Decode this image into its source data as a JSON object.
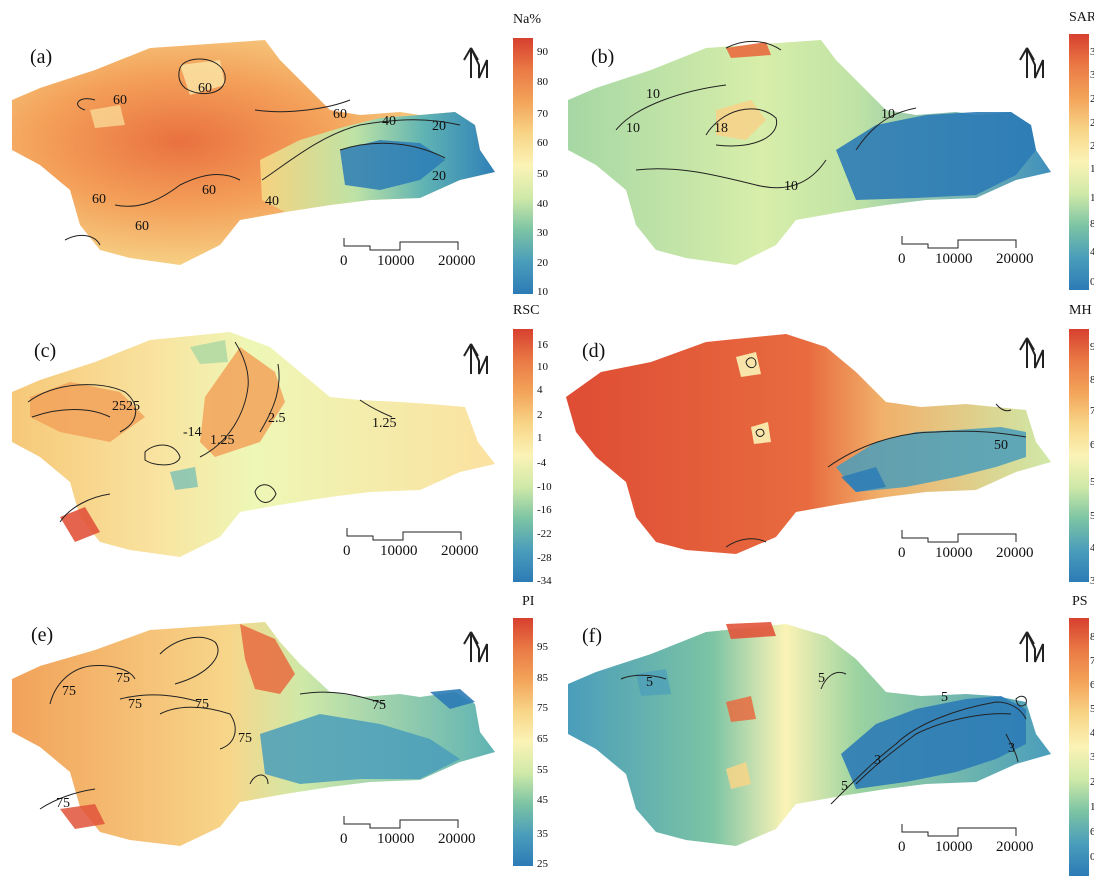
{
  "panels": [
    {
      "id": "a",
      "label": "(a)",
      "legend_title": "Na%",
      "ticks": [
        "90",
        "80",
        "70",
        "60",
        "50",
        "40",
        "30",
        "20",
        "10"
      ],
      "contours": [
        "60",
        "60",
        "60",
        "60",
        "60",
        "60",
        "40",
        "40",
        "20",
        "20"
      ]
    },
    {
      "id": "b",
      "label": "(b)",
      "legend_title": "SAR",
      "ticks": [
        "3",
        "3",
        "2",
        "2",
        "2",
        "1",
        "1",
        "8",
        "4",
        "0"
      ],
      "contours": [
        "10",
        "10",
        "18",
        "10",
        "10"
      ]
    },
    {
      "id": "c",
      "label": "(c)",
      "legend_title": "RSC",
      "ticks": [
        "16",
        "10",
        "4",
        "2",
        "1",
        "-4",
        "-10",
        "-16",
        "-22",
        "-28",
        "-34"
      ],
      "contours": [
        "2525",
        "-14",
        "1.25",
        "2.5",
        "1.25"
      ]
    },
    {
      "id": "d",
      "label": "(d)",
      "legend_title": "MH",
      "ticks": [
        "9",
        "8",
        "7",
        "6",
        "5",
        "5",
        "4",
        "3"
      ],
      "contours": [
        "50"
      ]
    },
    {
      "id": "e",
      "label": "(e)",
      "legend_title": "PI",
      "ticks": [
        "95",
        "85",
        "75",
        "65",
        "55",
        "45",
        "35",
        "25"
      ],
      "contours": [
        "75",
        "75",
        "75",
        "75",
        "75",
        "75",
        "75"
      ]
    },
    {
      "id": "f",
      "label": "(f)",
      "legend_title": "PS",
      "ticks": [
        "8",
        "7",
        "6",
        "5",
        "4",
        "3",
        "2",
        "1",
        "6",
        "0"
      ],
      "contours": [
        "5",
        "5",
        "5",
        "3",
        "5",
        "3"
      ]
    }
  ],
  "scale_bar": {
    "labels": [
      "0",
      "10000",
      "20000"
    ]
  },
  "north_arrow": "north-arrow-icon",
  "colors": {
    "high": "#d7402f",
    "mid_high": "#f3a45a",
    "mid": "#fbf3b6",
    "mid_low": "#9bd3a0",
    "low": "#2c7bb6"
  }
}
